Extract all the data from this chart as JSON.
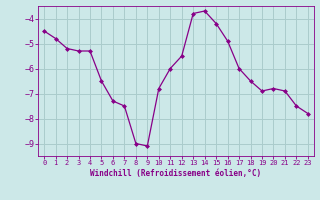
{
  "x": [
    0,
    1,
    2,
    3,
    4,
    5,
    6,
    7,
    8,
    9,
    10,
    11,
    12,
    13,
    14,
    15,
    16,
    17,
    18,
    19,
    20,
    21,
    22,
    23
  ],
  "y": [
    -4.5,
    -4.8,
    -5.2,
    -5.3,
    -5.3,
    -6.5,
    -7.3,
    -7.5,
    -9.0,
    -9.1,
    -6.8,
    -6.0,
    -5.5,
    -3.8,
    -3.7,
    -4.2,
    -4.9,
    -6.0,
    -6.5,
    -6.9,
    -6.8,
    -6.9,
    -7.5,
    -7.8
  ],
  "line_color": "#880088",
  "marker": "D",
  "marker_size": 2,
  "bg_color": "#cce8e8",
  "grid_color": "#aacccc",
  "xlabel": "Windchill (Refroidissement éolien,°C)",
  "ylim": [
    -9.5,
    -3.5
  ],
  "xlim": [
    -0.5,
    23.5
  ],
  "xticks": [
    0,
    1,
    2,
    3,
    4,
    5,
    6,
    7,
    8,
    9,
    10,
    11,
    12,
    13,
    14,
    15,
    16,
    17,
    18,
    19,
    20,
    21,
    22,
    23
  ],
  "yticks": [
    -9,
    -8,
    -7,
    -6,
    -5,
    -4
  ],
  "tick_color": "#880088",
  "label_color": "#880088",
  "font_family": "monospace"
}
